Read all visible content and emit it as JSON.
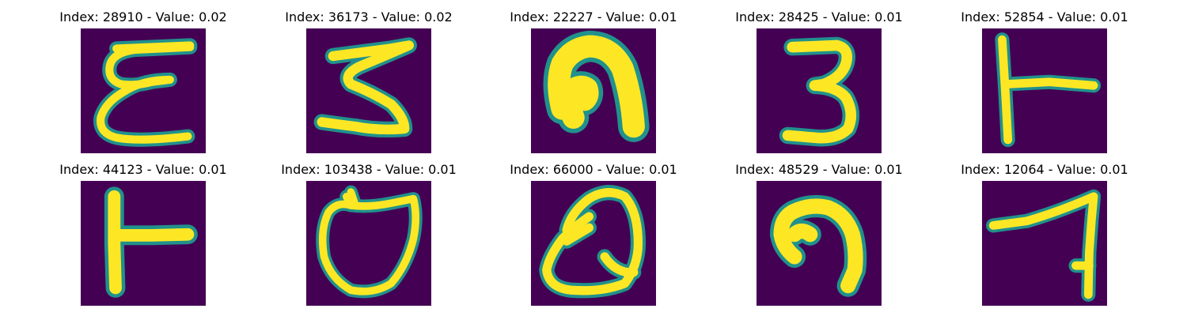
{
  "colors": {
    "background": "#440154",
    "stroke_core": "#fde725",
    "stroke_mid": "#5ec962",
    "stroke_edge": "#21918c"
  },
  "panels": [
    {
      "title": "Index: 28910 - Value: 0.02",
      "glyph": "epsilon"
    },
    {
      "title": "Index: 36173 - Value: 0.02",
      "glyph": "three-flat"
    },
    {
      "title": "Index: 22227 - Value: 0.01",
      "glyph": "bold-hook"
    },
    {
      "title": "Index: 28425 - Value: 0.01",
      "glyph": "three"
    },
    {
      "title": "Index: 52854 - Value: 0.01",
      "glyph": "t-sideways"
    },
    {
      "title": "Index: 44123 - Value: 0.01",
      "glyph": "t-sideways-bold"
    },
    {
      "title": "Index: 103438 - Value: 0.01",
      "glyph": "shield-loop"
    },
    {
      "title": "Index: 66000 - Value: 0.01",
      "glyph": "q-loop"
    },
    {
      "title": "Index: 48529 - Value: 0.01",
      "glyph": "hook"
    },
    {
      "title": "Index: 12064 - Value: 0.01",
      "glyph": "seven"
    }
  ]
}
